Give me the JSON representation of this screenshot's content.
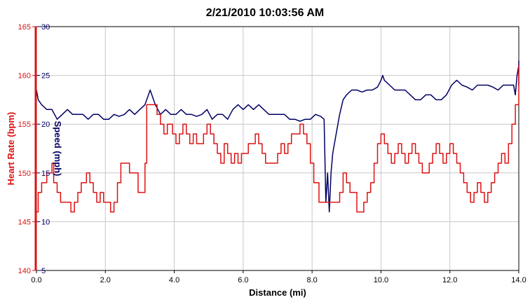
{
  "chart_data": {
    "type": "line",
    "title": "2/21/2010 10:03:56 AM",
    "xlabel": "Distance (mi)",
    "ylabel_left": "Heart Rate (bpm)",
    "ylabel_right": "Speed (mph)",
    "xlim": [
      0,
      14
    ],
    "ylim_left": [
      140,
      165
    ],
    "ylim_right": [
      5,
      30
    ],
    "x_ticks": [
      "0.0",
      "2.0",
      "4.0",
      "6.0",
      "8.0",
      "10.0",
      "12.0",
      "14.0"
    ],
    "y_left_ticks": [
      "140",
      "145",
      "150",
      "155",
      "160",
      "165"
    ],
    "y_right_ticks": [
      "5",
      "10",
      "15",
      "20",
      "25",
      "30"
    ],
    "grid": true,
    "colors": {
      "heart_rate": "#dd1111",
      "speed": "#000066",
      "grid": "#c8c8c8"
    },
    "series": [
      {
        "name": "Heart Rate (bpm)",
        "axis": "left",
        "points": [
          [
            0.0,
            146
          ],
          [
            0.05,
            148
          ],
          [
            0.15,
            149
          ],
          [
            0.3,
            150
          ],
          [
            0.45,
            151
          ],
          [
            0.5,
            149
          ],
          [
            0.6,
            148
          ],
          [
            0.7,
            147
          ],
          [
            0.85,
            147
          ],
          [
            1.0,
            146
          ],
          [
            1.1,
            147
          ],
          [
            1.2,
            148
          ],
          [
            1.3,
            149
          ],
          [
            1.45,
            150
          ],
          [
            1.55,
            149
          ],
          [
            1.65,
            148
          ],
          [
            1.75,
            147
          ],
          [
            1.85,
            148
          ],
          [
            1.95,
            147
          ],
          [
            2.05,
            147
          ],
          [
            2.15,
            146
          ],
          [
            2.25,
            147
          ],
          [
            2.35,
            149
          ],
          [
            2.45,
            151
          ],
          [
            2.6,
            151
          ],
          [
            2.7,
            150
          ],
          [
            2.85,
            150
          ],
          [
            2.95,
            148
          ],
          [
            3.05,
            148
          ],
          [
            3.15,
            151
          ],
          [
            3.2,
            157
          ],
          [
            3.4,
            157
          ],
          [
            3.5,
            156
          ],
          [
            3.6,
            155
          ],
          [
            3.7,
            154
          ],
          [
            3.8,
            155
          ],
          [
            3.95,
            154
          ],
          [
            4.05,
            153
          ],
          [
            4.15,
            154
          ],
          [
            4.25,
            155
          ],
          [
            4.35,
            154
          ],
          [
            4.45,
            153
          ],
          [
            4.55,
            154
          ],
          [
            4.65,
            153
          ],
          [
            4.75,
            153
          ],
          [
            4.85,
            154
          ],
          [
            4.95,
            155
          ],
          [
            5.05,
            154
          ],
          [
            5.15,
            153
          ],
          [
            5.25,
            152
          ],
          [
            5.35,
            151
          ],
          [
            5.45,
            153
          ],
          [
            5.55,
            152
          ],
          [
            5.65,
            151
          ],
          [
            5.75,
            152
          ],
          [
            5.85,
            151
          ],
          [
            5.95,
            152
          ],
          [
            6.05,
            152
          ],
          [
            6.15,
            153
          ],
          [
            6.25,
            153
          ],
          [
            6.35,
            154
          ],
          [
            6.45,
            153
          ],
          [
            6.55,
            152
          ],
          [
            6.65,
            151
          ],
          [
            6.8,
            151
          ],
          [
            6.9,
            151
          ],
          [
            7.0,
            152
          ],
          [
            7.1,
            153
          ],
          [
            7.2,
            152
          ],
          [
            7.3,
            153
          ],
          [
            7.4,
            154
          ],
          [
            7.55,
            154
          ],
          [
            7.65,
            155
          ],
          [
            7.75,
            154
          ],
          [
            7.85,
            153
          ],
          [
            7.95,
            151
          ],
          [
            8.05,
            149
          ],
          [
            8.2,
            147
          ],
          [
            8.4,
            147
          ],
          [
            8.55,
            147
          ],
          [
            8.7,
            147
          ],
          [
            8.8,
            148
          ],
          [
            8.9,
            150
          ],
          [
            9.0,
            149
          ],
          [
            9.1,
            148
          ],
          [
            9.2,
            148
          ],
          [
            9.3,
            146
          ],
          [
            9.4,
            146
          ],
          [
            9.5,
            147
          ],
          [
            9.6,
            148
          ],
          [
            9.7,
            149
          ],
          [
            9.8,
            151
          ],
          [
            9.9,
            153
          ],
          [
            10.0,
            154
          ],
          [
            10.1,
            153
          ],
          [
            10.2,
            152
          ],
          [
            10.3,
            151
          ],
          [
            10.4,
            152
          ],
          [
            10.5,
            153
          ],
          [
            10.6,
            152
          ],
          [
            10.7,
            151
          ],
          [
            10.8,
            152
          ],
          [
            10.9,
            153
          ],
          [
            11.0,
            152
          ],
          [
            11.1,
            151
          ],
          [
            11.2,
            150
          ],
          [
            11.3,
            150
          ],
          [
            11.4,
            151
          ],
          [
            11.5,
            152
          ],
          [
            11.6,
            153
          ],
          [
            11.7,
            152
          ],
          [
            11.8,
            151
          ],
          [
            11.9,
            152
          ],
          [
            12.0,
            153
          ],
          [
            12.1,
            152
          ],
          [
            12.2,
            151
          ],
          [
            12.3,
            150
          ],
          [
            12.4,
            149
          ],
          [
            12.5,
            148
          ],
          [
            12.6,
            147
          ],
          [
            12.7,
            148
          ],
          [
            12.8,
            149
          ],
          [
            12.9,
            148
          ],
          [
            13.0,
            147
          ],
          [
            13.1,
            148
          ],
          [
            13.2,
            149
          ],
          [
            13.3,
            150
          ],
          [
            13.4,
            151
          ],
          [
            13.5,
            152
          ],
          [
            13.6,
            151
          ],
          [
            13.7,
            153
          ],
          [
            13.8,
            155
          ],
          [
            13.9,
            157
          ],
          [
            14.0,
            160
          ],
          [
            14.05,
            161
          ],
          [
            14.1,
            158
          ]
        ]
      },
      {
        "name": "Speed (mph)",
        "axis": "right",
        "points": [
          [
            0.0,
            23.5
          ],
          [
            0.05,
            22.5
          ],
          [
            0.15,
            22
          ],
          [
            0.3,
            21.5
          ],
          [
            0.45,
            21.5
          ],
          [
            0.6,
            20.5
          ],
          [
            0.75,
            21
          ],
          [
            0.9,
            21.5
          ],
          [
            1.05,
            21
          ],
          [
            1.2,
            21
          ],
          [
            1.35,
            21
          ],
          [
            1.5,
            20.5
          ],
          [
            1.65,
            21
          ],
          [
            1.8,
            21
          ],
          [
            1.95,
            20.5
          ],
          [
            2.1,
            20.5
          ],
          [
            2.25,
            21
          ],
          [
            2.4,
            20.8
          ],
          [
            2.55,
            21
          ],
          [
            2.7,
            21.5
          ],
          [
            2.85,
            21
          ],
          [
            3.0,
            21.5
          ],
          [
            3.15,
            22
          ],
          [
            3.3,
            23.5
          ],
          [
            3.45,
            22
          ],
          [
            3.6,
            21
          ],
          [
            3.75,
            21.5
          ],
          [
            3.9,
            21
          ],
          [
            4.05,
            21
          ],
          [
            4.2,
            21.5
          ],
          [
            4.35,
            21
          ],
          [
            4.5,
            21
          ],
          [
            4.65,
            20.8
          ],
          [
            4.8,
            21
          ],
          [
            4.95,
            21.5
          ],
          [
            5.1,
            20.5
          ],
          [
            5.25,
            21
          ],
          [
            5.4,
            21
          ],
          [
            5.55,
            20.5
          ],
          [
            5.7,
            21.5
          ],
          [
            5.85,
            22
          ],
          [
            6.0,
            21.5
          ],
          [
            6.15,
            22
          ],
          [
            6.3,
            21.5
          ],
          [
            6.45,
            22
          ],
          [
            6.6,
            21.5
          ],
          [
            6.75,
            21
          ],
          [
            6.9,
            21
          ],
          [
            7.05,
            21
          ],
          [
            7.2,
            21
          ],
          [
            7.35,
            20.5
          ],
          [
            7.5,
            20.5
          ],
          [
            7.65,
            20.3
          ],
          [
            7.8,
            20.5
          ],
          [
            7.95,
            20.5
          ],
          [
            8.1,
            21
          ],
          [
            8.25,
            20.8
          ],
          [
            8.35,
            20.5
          ],
          [
            8.4,
            12
          ],
          [
            8.45,
            15
          ],
          [
            8.5,
            11
          ],
          [
            8.55,
            15
          ],
          [
            8.6,
            17
          ],
          [
            8.7,
            19
          ],
          [
            8.8,
            21
          ],
          [
            8.9,
            22.5
          ],
          [
            9.0,
            23
          ],
          [
            9.15,
            23.5
          ],
          [
            9.3,
            23.5
          ],
          [
            9.45,
            23.3
          ],
          [
            9.6,
            23.5
          ],
          [
            9.75,
            23.5
          ],
          [
            9.9,
            23.8
          ],
          [
            10.0,
            24.5
          ],
          [
            10.05,
            25
          ],
          [
            10.1,
            24.5
          ],
          [
            10.25,
            24
          ],
          [
            10.4,
            23.5
          ],
          [
            10.55,
            23.5
          ],
          [
            10.7,
            23.5
          ],
          [
            10.85,
            23
          ],
          [
            11.0,
            22.5
          ],
          [
            11.15,
            22.5
          ],
          [
            11.3,
            23
          ],
          [
            11.45,
            23
          ],
          [
            11.6,
            22.5
          ],
          [
            11.75,
            22.5
          ],
          [
            11.9,
            23
          ],
          [
            12.05,
            24
          ],
          [
            12.2,
            24.5
          ],
          [
            12.35,
            24
          ],
          [
            12.5,
            23.8
          ],
          [
            12.65,
            23.5
          ],
          [
            12.8,
            24
          ],
          [
            12.95,
            24
          ],
          [
            13.1,
            24
          ],
          [
            13.25,
            23.8
          ],
          [
            13.4,
            23.5
          ],
          [
            13.55,
            24
          ],
          [
            13.7,
            24
          ],
          [
            13.85,
            24
          ],
          [
            13.9,
            23
          ],
          [
            13.95,
            25
          ],
          [
            14.0,
            26
          ],
          [
            14.05,
            26.5
          ],
          [
            14.1,
            24
          ]
        ]
      }
    ]
  }
}
